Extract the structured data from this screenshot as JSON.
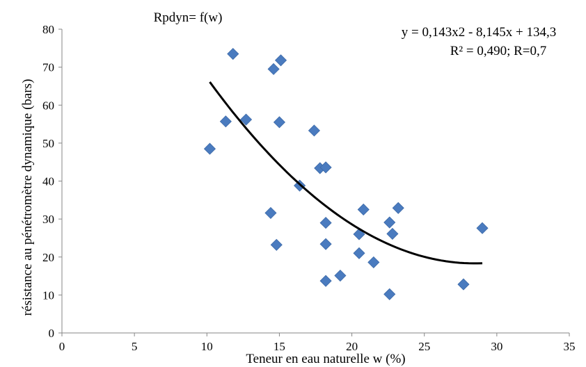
{
  "chart_data": {
    "type": "scatter",
    "title": "Rpdyn= f(w)",
    "xlabel": "Teneur en eau naturelle w (%)",
    "ylabel": "résistance au pénétromètre dynamique (bars)",
    "xlim": [
      0,
      35
    ],
    "ylim": [
      0,
      80
    ],
    "x_ticks": [
      "0",
      "5",
      "10",
      "15",
      "20",
      "25",
      "30",
      "35"
    ],
    "y_ticks": [
      "0",
      "10",
      "20",
      "30",
      "40",
      "50",
      "60",
      "70",
      "80"
    ],
    "grid": false,
    "legend": "none",
    "trendline": {
      "type": "polynomial",
      "equation": "y = 0,143x2 - 8,145x + 134,3",
      "stats": "R² = 0,490; R=0,7",
      "a": 0.143,
      "b": -8.145,
      "c": 134.3,
      "x_range": [
        10.2,
        29
      ]
    },
    "series": [
      {
        "color": "#4a7bbf",
        "marker": "diamond",
        "points": [
          {
            "x": 10.2,
            "y": 48.5
          },
          {
            "x": 11.3,
            "y": 55.7
          },
          {
            "x": 11.8,
            "y": 73.5
          },
          {
            "x": 12.7,
            "y": 56.2
          },
          {
            "x": 14.4,
            "y": 31.6
          },
          {
            "x": 14.6,
            "y": 69.5
          },
          {
            "x": 14.8,
            "y": 23.2
          },
          {
            "x": 15.0,
            "y": 55.5
          },
          {
            "x": 15.1,
            "y": 71.8
          },
          {
            "x": 16.4,
            "y": 38.8
          },
          {
            "x": 17.4,
            "y": 53.3
          },
          {
            "x": 17.8,
            "y": 43.4
          },
          {
            "x": 18.2,
            "y": 43.6
          },
          {
            "x": 18.2,
            "y": 29.0
          },
          {
            "x": 18.2,
            "y": 23.4
          },
          {
            "x": 18.2,
            "y": 13.7
          },
          {
            "x": 19.2,
            "y": 15.1
          },
          {
            "x": 20.5,
            "y": 26.0
          },
          {
            "x": 20.5,
            "y": 21.0
          },
          {
            "x": 20.8,
            "y": 32.5
          },
          {
            "x": 21.5,
            "y": 18.6
          },
          {
            "x": 22.6,
            "y": 29.1
          },
          {
            "x": 22.6,
            "y": 10.2
          },
          {
            "x": 22.8,
            "y": 26.1
          },
          {
            "x": 23.2,
            "y": 32.9
          },
          {
            "x": 27.7,
            "y": 12.8
          },
          {
            "x": 29.0,
            "y": 27.6
          }
        ]
      }
    ]
  }
}
